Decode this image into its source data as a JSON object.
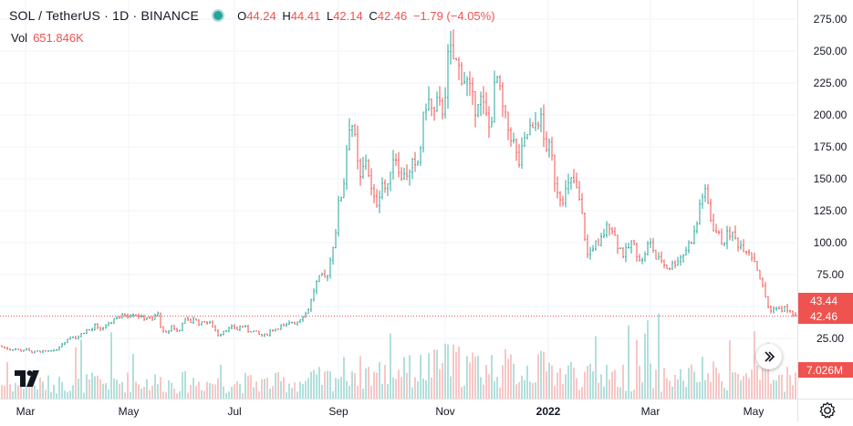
{
  "legend": {
    "symbol": "SOL / TetherUS · 1D · BINANCE",
    "o_label": "O",
    "o_value": "44.24",
    "h_label": "H",
    "h_value": "44.41",
    "l_label": "L",
    "l_value": "42.14",
    "c_label": "C",
    "c_value": "42.46",
    "change": "−1.79 (−4.05%)",
    "vol_label": "Vol",
    "vol_value": "651.846K"
  },
  "icons": {
    "logo": "tradingview-logo-icon",
    "goto_realtime": "double-chevron-right-icon",
    "settings": "gear-icon"
  },
  "colors": {
    "up": "#26a69a",
    "down": "#ef5350",
    "up_volume": "#b2dfdb",
    "down_volume": "#f7c7c6",
    "grid": "#f0f3fa",
    "price_line": "#ef5350"
  },
  "chart_data": {
    "type": "candlestick",
    "y_ticks": [
      "25.00",
      "50.00",
      "75.00",
      "100.00",
      "125.00",
      "150.00",
      "175.00",
      "200.00",
      "225.00",
      "250.00",
      "275.00"
    ],
    "y_range": [
      7,
      280
    ],
    "x_ticks": [
      "Mar",
      "May",
      "Jul",
      "Sep",
      "Nov",
      "2022",
      "Mar",
      "May"
    ],
    "price_labels": [
      {
        "value": 43.44,
        "text": "43.44",
        "color": "#ef5350"
      },
      {
        "value": 42.46,
        "text": "42.46",
        "color": "#ef5350"
      }
    ],
    "volume_label": "7.026M",
    "last_price": 42.46,
    "series_close": [
      [
        0,
        19
      ],
      [
        4,
        18
      ],
      [
        8,
        17
      ],
      [
        12,
        16
      ],
      [
        16,
        17
      ],
      [
        20,
        16
      ],
      [
        24,
        15
      ],
      [
        28,
        17
      ],
      [
        32,
        15
      ],
      [
        36,
        14
      ],
      [
        40,
        15
      ],
      [
        44,
        14
      ],
      [
        48,
        15
      ],
      [
        52,
        15
      ],
      [
        56,
        16
      ],
      [
        60,
        15
      ],
      [
        64,
        18
      ],
      [
        68,
        21
      ],
      [
        72,
        23
      ],
      [
        76,
        26
      ],
      [
        80,
        27
      ],
      [
        84,
        25
      ],
      [
        88,
        28
      ],
      [
        92,
        30
      ],
      [
        96,
        32
      ],
      [
        100,
        31
      ],
      [
        104,
        35
      ],
      [
        108,
        32
      ],
      [
        112,
        33
      ],
      [
        116,
        34
      ],
      [
        120,
        36
      ],
      [
        124,
        40
      ],
      [
        128,
        42
      ],
      [
        132,
        41
      ],
      [
        136,
        44
      ],
      [
        140,
        43
      ],
      [
        144,
        45
      ],
      [
        148,
        44
      ],
      [
        152,
        43
      ],
      [
        156,
        40
      ],
      [
        160,
        42
      ],
      [
        164,
        40
      ],
      [
        168,
        39
      ],
      [
        172,
        47
      ],
      [
        176,
        35
      ],
      [
        180,
        28
      ],
      [
        184,
        30
      ],
      [
        188,
        35
      ],
      [
        192,
        32
      ],
      [
        196,
        29
      ],
      [
        200,
        38
      ],
      [
        204,
        40
      ],
      [
        208,
        37
      ],
      [
        212,
        41
      ],
      [
        216,
        38
      ],
      [
        220,
        36
      ],
      [
        224,
        39
      ],
      [
        228,
        37
      ],
      [
        232,
        36
      ],
      [
        236,
        31
      ],
      [
        240,
        27
      ],
      [
        244,
        31
      ],
      [
        248,
        32
      ],
      [
        252,
        33
      ],
      [
        256,
        34
      ],
      [
        260,
        32
      ],
      [
        264,
        35
      ],
      [
        268,
        34
      ],
      [
        272,
        31
      ],
      [
        276,
        31
      ],
      [
        280,
        30
      ],
      [
        284,
        28
      ],
      [
        288,
        27
      ],
      [
        292,
        28
      ],
      [
        296,
        31
      ],
      [
        300,
        32
      ],
      [
        304,
        33
      ],
      [
        308,
        35
      ],
      [
        312,
        34
      ],
      [
        316,
        36
      ],
      [
        320,
        38
      ],
      [
        324,
        37
      ],
      [
        328,
        40
      ],
      [
        332,
        43
      ],
      [
        336,
        45
      ],
      [
        340,
        52
      ],
      [
        344,
        63
      ],
      [
        348,
        70
      ],
      [
        352,
        73
      ],
      [
        356,
        72
      ],
      [
        360,
        78
      ],
      [
        364,
        95
      ],
      [
        368,
        110
      ],
      [
        372,
        135
      ],
      [
        376,
        140
      ],
      [
        380,
        175
      ],
      [
        384,
        200
      ],
      [
        388,
        185
      ],
      [
        392,
        160
      ],
      [
        396,
        145
      ],
      [
        400,
        170
      ],
      [
        404,
        155
      ],
      [
        408,
        135
      ],
      [
        412,
        130
      ],
      [
        416,
        140
      ],
      [
        420,
        150
      ],
      [
        424,
        135
      ],
      [
        428,
        160
      ],
      [
        432,
        170
      ],
      [
        436,
        165
      ],
      [
        440,
        148
      ],
      [
        444,
        160
      ],
      [
        448,
        150
      ],
      [
        452,
        160
      ],
      [
        456,
        155
      ],
      [
        460,
        170
      ],
      [
        464,
        195
      ],
      [
        468,
        215
      ],
      [
        472,
        205
      ],
      [
        476,
        200
      ],
      [
        480,
        210
      ],
      [
        484,
        200
      ],
      [
        488,
        220
      ],
      [
        492,
        250
      ],
      [
        496,
        245
      ],
      [
        500,
        240
      ],
      [
        504,
        235
      ],
      [
        508,
        230
      ],
      [
        512,
        225
      ],
      [
        516,
        215
      ],
      [
        520,
        205
      ],
      [
        524,
        215
      ],
      [
        528,
        210
      ],
      [
        532,
        200
      ],
      [
        536,
        190
      ],
      [
        540,
        205
      ],
      [
        544,
        232
      ],
      [
        548,
        215
      ],
      [
        552,
        200
      ],
      [
        556,
        190
      ],
      [
        560,
        185
      ],
      [
        564,
        175
      ],
      [
        568,
        160
      ],
      [
        572,
        170
      ],
      [
        576,
        180
      ],
      [
        580,
        190
      ],
      [
        584,
        185
      ],
      [
        588,
        195
      ],
      [
        592,
        200
      ],
      [
        596,
        180
      ],
      [
        600,
        175
      ],
      [
        604,
        170
      ],
      [
        608,
        150
      ],
      [
        612,
        140
      ],
      [
        616,
        135
      ],
      [
        620,
        140
      ],
      [
        624,
        145
      ],
      [
        628,
        150
      ],
      [
        632,
        140
      ],
      [
        636,
        130
      ],
      [
        640,
        110
      ],
      [
        644,
        90
      ],
      [
        648,
        95
      ],
      [
        652,
        100
      ],
      [
        656,
        95
      ],
      [
        660,
        105
      ],
      [
        664,
        110
      ],
      [
        668,
        115
      ],
      [
        672,
        110
      ],
      [
        676,
        100
      ],
      [
        680,
        95
      ],
      [
        684,
        90
      ],
      [
        688,
        95
      ],
      [
        692,
        100
      ],
      [
        696,
        95
      ],
      [
        700,
        90
      ],
      [
        704,
        85
      ],
      [
        708,
        95
      ],
      [
        712,
        100
      ],
      [
        716,
        95
      ],
      [
        720,
        85
      ],
      [
        724,
        88
      ],
      [
        728,
        83
      ],
      [
        732,
        80
      ],
      [
        736,
        82
      ],
      [
        740,
        85
      ],
      [
        744,
        88
      ],
      [
        748,
        90
      ],
      [
        752,
        95
      ],
      [
        756,
        100
      ],
      [
        760,
        105
      ],
      [
        764,
        115
      ],
      [
        768,
        135
      ],
      [
        772,
        140
      ],
      [
        776,
        130
      ],
      [
        780,
        115
      ],
      [
        784,
        110
      ],
      [
        788,
        105
      ],
      [
        792,
        100
      ],
      [
        796,
        105
      ],
      [
        800,
        108
      ],
      [
        804,
        105
      ],
      [
        808,
        100
      ],
      [
        812,
        98
      ],
      [
        816,
        96
      ],
      [
        820,
        95
      ],
      [
        824,
        90
      ],
      [
        828,
        85
      ],
      [
        832,
        75
      ],
      [
        836,
        65
      ],
      [
        840,
        55
      ],
      [
        844,
        45
      ],
      [
        848,
        50
      ],
      [
        852,
        48
      ],
      [
        856,
        47
      ],
      [
        860,
        49
      ],
      [
        864,
        46
      ],
      [
        868,
        45
      ],
      [
        872,
        42.46
      ]
    ]
  }
}
